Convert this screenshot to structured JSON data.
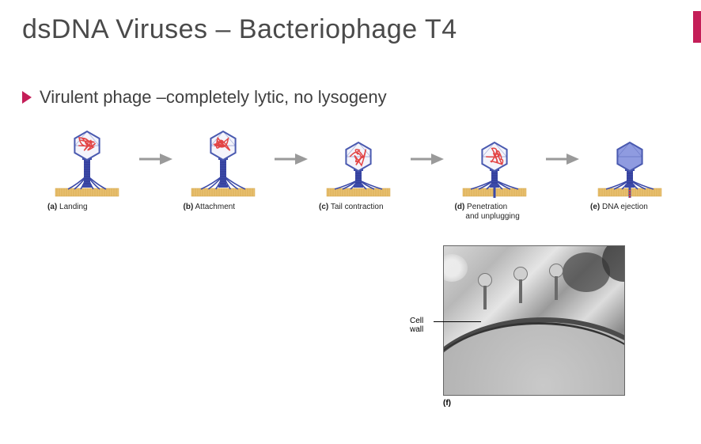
{
  "colors": {
    "accent": "#c41e58",
    "title": "#4a4a4a",
    "bullet_text": "#404040",
    "arrow": "#9a9a9a",
    "phage_head_outline": "#4a5ab0",
    "phage_head_fill": "#8f9be0",
    "phage_dna": "#e13b3b",
    "phage_tail": "#3c4aa8",
    "membrane": "#e8c070",
    "membrane_dark": "#d4a548",
    "caption": "#262626"
  },
  "title": "dsDNA Viruses – Bacteriophage T4",
  "bullet": "Virulent phage –completely lytic, no lysogeny",
  "steps": [
    {
      "tag": "(a)",
      "label": "Landing",
      "tail_height": 36,
      "legs_spread": 24,
      "dna_in_head": true,
      "empty_head": false
    },
    {
      "tag": "(b)",
      "label": "Attachment",
      "tail_height": 36,
      "legs_spread": 28,
      "dna_in_head": true,
      "empty_head": false
    },
    {
      "tag": "(c)",
      "label": "Tail contraction",
      "tail_height": 22,
      "legs_spread": 30,
      "dna_in_head": true,
      "empty_head": false
    },
    {
      "tag": "(d)",
      "label": "Penetration\nand unplugging",
      "tail_height": 22,
      "legs_spread": 30,
      "dna_in_head": true,
      "empty_head": false,
      "penetrate": true
    },
    {
      "tag": "(e)",
      "label": "DNA ejection",
      "tail_height": 22,
      "legs_spread": 30,
      "dna_in_head": false,
      "empty_head": true,
      "penetrate": true,
      "eject": true
    }
  ],
  "micrograph": {
    "cell_wall_label": "Cell\nwall",
    "tag": "(f)"
  }
}
